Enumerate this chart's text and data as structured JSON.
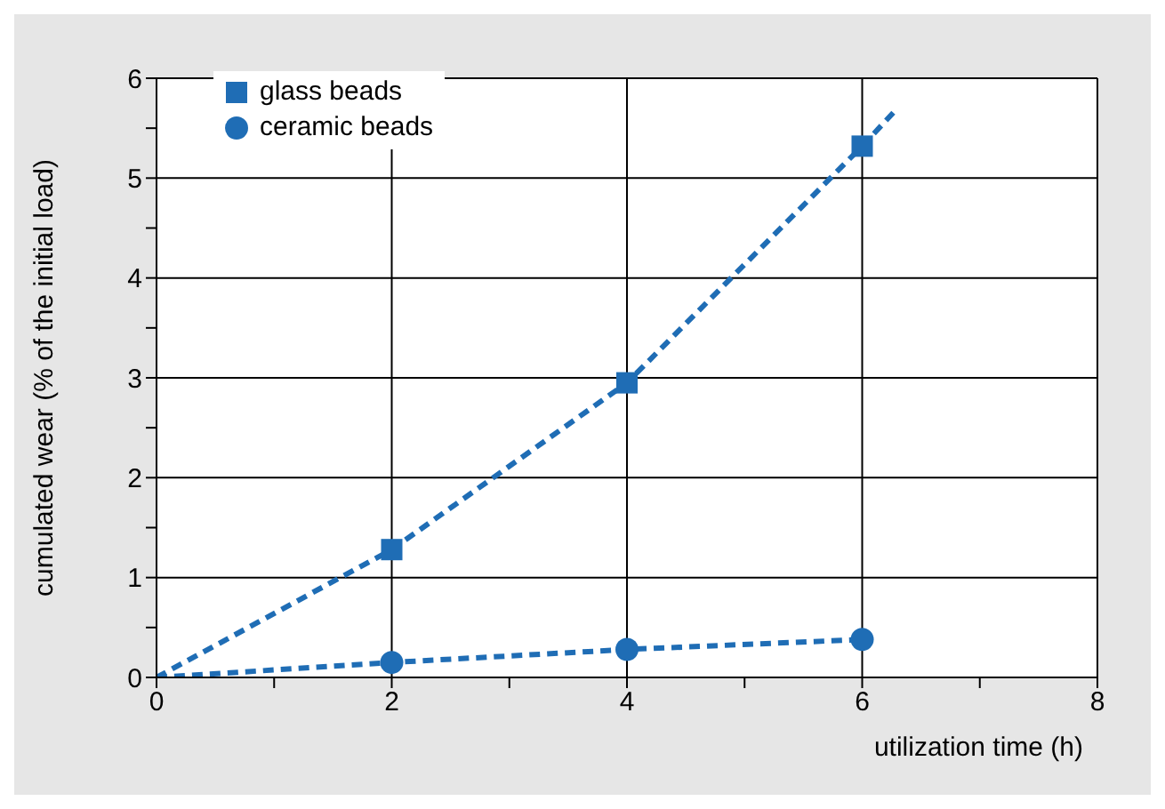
{
  "chart_data": {
    "type": "line",
    "xlabel": "utilization time (h)",
    "ylabel": "cumulated wear (% of the initial load)",
    "xlim": [
      0,
      8
    ],
    "xticks": [
      0,
      {
        "value": 1,
        "label": null
      },
      2,
      {
        "value": 3,
        "label": null
      },
      4,
      {
        "value": 5,
        "label": null
      },
      6,
      {
        "value": 7,
        "label": null
      },
      8
    ],
    "ylim": [
      0,
      6
    ],
    "yticks": [
      0,
      {
        "value": 0.5,
        "label": null
      },
      1,
      {
        "value": 1.5,
        "label": null
      },
      2,
      {
        "value": 2.5,
        "label": null
      },
      3,
      {
        "value": 3.5,
        "label": null
      },
      4,
      {
        "value": 4.5,
        "label": null
      },
      5,
      {
        "value": 5.5,
        "label": null
      },
      6
    ],
    "grid": true,
    "legend": "top left",
    "line_style": "dashed",
    "series": [
      {
        "color": "#1f6db5",
        "x": [
          0,
          2,
          4,
          6,
          6.3
        ],
        "values": [
          0,
          1.28,
          2.95,
          5.32,
          5.7
        ],
        "marker": "none"
      },
      {
        "color": "#1f6db5",
        "x": [
          0,
          2,
          4,
          6
        ],
        "values": [
          0,
          0.15,
          0.28,
          0.38
        ],
        "marker": "none"
      },
      {
        "type": "scatter",
        "name": "glass beads",
        "color": "#1f6db5",
        "x": [
          2,
          4,
          6
        ],
        "values": [
          1.28,
          2.95,
          5.32
        ],
        "marker": "square"
      },
      {
        "type": "scatter",
        "name": "ceramic beads",
        "color": "#1f6db5",
        "x": [
          2,
          4,
          6
        ],
        "values": [
          0.15,
          0.28,
          0.38
        ],
        "marker": "circle"
      }
    ]
  }
}
